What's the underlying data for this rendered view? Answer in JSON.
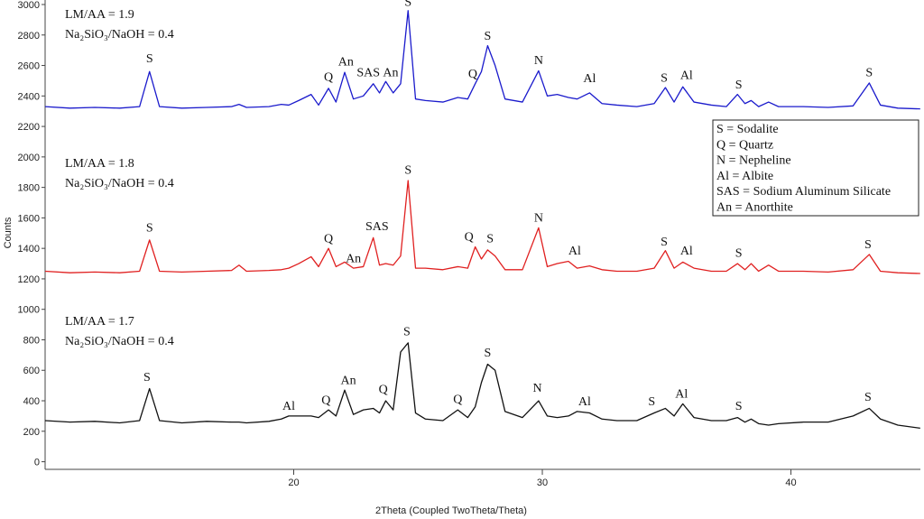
{
  "chart_data": {
    "type": "line",
    "x_label": "2Theta (Coupled TwoTheta/Theta)",
    "y_label": "Counts",
    "xlim": [
      10,
      45.2
    ],
    "xticks": [
      20,
      30,
      40
    ],
    "ylim": [
      -50,
      3000
    ],
    "yticks": [
      0,
      200,
      400,
      600,
      800,
      1000,
      1200,
      1400,
      1600,
      1800,
      2000,
      2200,
      2400,
      2600,
      2800,
      3000
    ],
    "x": [
      10,
      11,
      12,
      13,
      13.8,
      14.2,
      14.6,
      15.5,
      16.5,
      17.5,
      17.8,
      18.1,
      19,
      19.5,
      19.8,
      20.2,
      20.7,
      21.0,
      21.4,
      21.7,
      22.05,
      22.4,
      22.8,
      23.2,
      23.45,
      23.7,
      24.0,
      24.3,
      24.6,
      24.9,
      25.3,
      26.0,
      26.6,
      27.0,
      27.3,
      27.55,
      27.8,
      28.1,
      28.5,
      29.2,
      29.85,
      30.2,
      30.6,
      31.05,
      31.4,
      31.9,
      32.4,
      33.0,
      33.8,
      34.5,
      34.95,
      35.3,
      35.65,
      36.1,
      36.8,
      37.4,
      37.85,
      38.15,
      38.4,
      38.7,
      39.1,
      39.5,
      40.5,
      41.5,
      42.5,
      43.15,
      43.6,
      44.3,
      45.2
    ],
    "series": [
      {
        "name": "LM/AA = 1.9",
        "subtitle": "Na₂SiO₃/NaOH = 0.4",
        "color": "#1a1acc",
        "values": [
          2330,
          2320,
          2325,
          2320,
          2330,
          2560,
          2330,
          2320,
          2325,
          2330,
          2345,
          2325,
          2330,
          2345,
          2340,
          2370,
          2410,
          2340,
          2450,
          2360,
          2555,
          2380,
          2400,
          2480,
          2420,
          2495,
          2420,
          2480,
          2960,
          2380,
          2370,
          2360,
          2390,
          2380,
          2480,
          2560,
          2730,
          2600,
          2380,
          2360,
          2565,
          2400,
          2410,
          2390,
          2380,
          2420,
          2350,
          2340,
          2330,
          2350,
          2455,
          2360,
          2460,
          2360,
          2340,
          2330,
          2410,
          2350,
          2370,
          2330,
          2360,
          2330,
          2330,
          2325,
          2335,
          2485,
          2340,
          2320,
          2315
        ]
      },
      {
        "name": "LM/AA = 1.8",
        "subtitle": "Na₂SiO₃/NaOH = 0.4",
        "color": "#e02020",
        "values": [
          1250,
          1240,
          1245,
          1240,
          1250,
          1455,
          1250,
          1245,
          1250,
          1255,
          1290,
          1250,
          1255,
          1260,
          1270,
          1300,
          1345,
          1280,
          1400,
          1280,
          1310,
          1270,
          1280,
          1470,
          1290,
          1300,
          1290,
          1350,
          1845,
          1270,
          1270,
          1260,
          1280,
          1270,
          1410,
          1330,
          1390,
          1350,
          1260,
          1260,
          1535,
          1280,
          1300,
          1315,
          1270,
          1285,
          1260,
          1250,
          1250,
          1270,
          1385,
          1270,
          1310,
          1270,
          1250,
          1250,
          1300,
          1260,
          1300,
          1250,
          1290,
          1250,
          1250,
          1245,
          1260,
          1360,
          1250,
          1240,
          1235
        ]
      },
      {
        "name": "LM/AA = 1.7",
        "subtitle": "Na₂SiO₃/NaOH = 0.4",
        "color": "#111111",
        "values": [
          270,
          260,
          265,
          255,
          270,
          480,
          270,
          255,
          265,
          260,
          260,
          255,
          265,
          280,
          300,
          300,
          300,
          290,
          340,
          300,
          470,
          310,
          340,
          350,
          320,
          400,
          340,
          720,
          780,
          320,
          280,
          270,
          340,
          290,
          360,
          520,
          640,
          600,
          330,
          290,
          400,
          300,
          290,
          300,
          330,
          320,
          280,
          270,
          270,
          320,
          350,
          300,
          380,
          290,
          270,
          270,
          290,
          260,
          280,
          250,
          240,
          250,
          260,
          260,
          300,
          350,
          280,
          240,
          220
        ]
      }
    ],
    "annotations": [
      {
        "text": "S",
        "x": 14.2,
        "y": 2620
      },
      {
        "text": "Q",
        "x": 21.4,
        "y": 2500
      },
      {
        "text": "An",
        "x": 22.1,
        "y": 2600
      },
      {
        "text": "SAS",
        "x": 23.0,
        "y": 2530
      },
      {
        "text": "An",
        "x": 23.9,
        "y": 2530
      },
      {
        "text": "S",
        "x": 24.6,
        "y": 2990
      },
      {
        "text": "Q",
        "x": 27.2,
        "y": 2520
      },
      {
        "text": "S",
        "x": 27.8,
        "y": 2770
      },
      {
        "text": "N",
        "x": 29.85,
        "y": 2610
      },
      {
        "text": "Al",
        "x": 31.9,
        "y": 2490
      },
      {
        "text": "S",
        "x": 34.9,
        "y": 2495
      },
      {
        "text": "Al",
        "x": 35.8,
        "y": 2510
      },
      {
        "text": "S",
        "x": 37.9,
        "y": 2450
      },
      {
        "text": "S",
        "x": 43.15,
        "y": 2530
      },
      {
        "text": "S",
        "x": 14.2,
        "y": 1510
      },
      {
        "text": "Q",
        "x": 21.4,
        "y": 1440
      },
      {
        "text": "An",
        "x": 22.4,
        "y": 1310
      },
      {
        "text": "SAS",
        "x": 23.35,
        "y": 1520
      },
      {
        "text": "S",
        "x": 24.6,
        "y": 1890
      },
      {
        "text": "Q",
        "x": 27.05,
        "y": 1450
      },
      {
        "text": "S",
        "x": 27.9,
        "y": 1440
      },
      {
        "text": "N",
        "x": 29.85,
        "y": 1575
      },
      {
        "text": "Al",
        "x": 31.3,
        "y": 1360
      },
      {
        "text": "S",
        "x": 34.9,
        "y": 1420
      },
      {
        "text": "Al",
        "x": 35.8,
        "y": 1360
      },
      {
        "text": "S",
        "x": 37.9,
        "y": 1345
      },
      {
        "text": "S",
        "x": 43.1,
        "y": 1400
      },
      {
        "text": "S",
        "x": 14.1,
        "y": 530
      },
      {
        "text": "Al",
        "x": 19.8,
        "y": 340
      },
      {
        "text": "Q",
        "x": 21.3,
        "y": 380
      },
      {
        "text": "An",
        "x": 22.2,
        "y": 510
      },
      {
        "text": "Q",
        "x": 23.6,
        "y": 450
      },
      {
        "text": "S",
        "x": 24.55,
        "y": 830
      },
      {
        "text": "Q",
        "x": 26.6,
        "y": 385
      },
      {
        "text": "S",
        "x": 27.8,
        "y": 690
      },
      {
        "text": "N",
        "x": 29.8,
        "y": 460
      },
      {
        "text": "Al",
        "x": 31.7,
        "y": 370
      },
      {
        "text": "S",
        "x": 34.4,
        "y": 370
      },
      {
        "text": "Al",
        "x": 35.6,
        "y": 420
      },
      {
        "text": "S",
        "x": 37.9,
        "y": 340
      },
      {
        "text": "S",
        "x": 43.1,
        "y": 400
      }
    ],
    "key": [
      "S = Sodalite",
      "Q = Quartz",
      "N = Nepheline",
      "Al = Albite",
      "SAS = Sodium Aluminum Silicate",
      "An = Anorthite"
    ]
  }
}
